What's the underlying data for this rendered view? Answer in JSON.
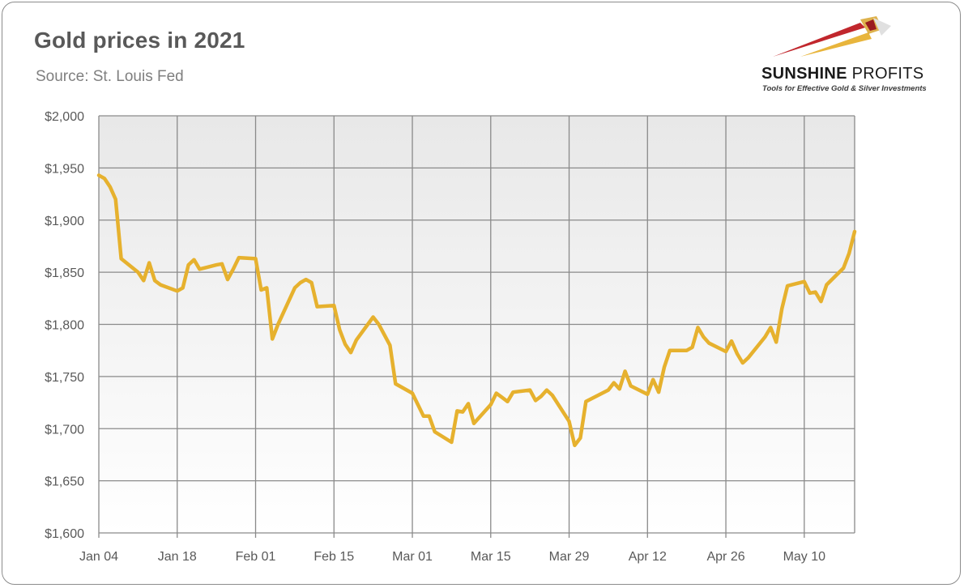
{
  "header": {
    "title": "Gold prices in 2021",
    "subtitle": "Source: St. Louis Fed"
  },
  "logo": {
    "name_part1": "SUNSHINE",
    "name_part2": "PROFITS",
    "tagline": "Tools for Effective Gold & Silver Investments",
    "colors": [
      "#c1272d",
      "#e8b53c",
      "#d9d9d9"
    ]
  },
  "colors": {
    "line": "#e6b12e",
    "grid": "#8a8a8a",
    "plot_gradient_top": "#e8e8e8",
    "plot_gradient_bottom": "#ffffff"
  },
  "chart_data": {
    "type": "line",
    "title": "Gold prices in 2021",
    "subtitle": "Source: St. Louis Fed",
    "xlabel": "",
    "ylabel": "",
    "ylim": [
      1600,
      2000
    ],
    "y_ticks": [
      1600,
      1650,
      1700,
      1750,
      1800,
      1850,
      1900,
      1950,
      2000
    ],
    "y_tick_labels": [
      "$1,600",
      "$1,650",
      "$1,700",
      "$1,750",
      "$1,800",
      "$1,850",
      "$1,900",
      "$1,950",
      "$2,000"
    ],
    "x_tick_labels": [
      "Jan 04",
      "Jan 18",
      "Feb 01",
      "Feb 15",
      "Mar 01",
      "Mar 15",
      "Mar 29",
      "Apr 12",
      "Apr 26",
      "May 10"
    ],
    "x_tick_dates": [
      "2021-01-04",
      "2021-01-18",
      "2021-02-01",
      "2021-02-15",
      "2021-03-01",
      "2021-03-15",
      "2021-03-29",
      "2021-04-12",
      "2021-04-26",
      "2021-05-10"
    ],
    "xlim": [
      "2021-01-04",
      "2021-05-19"
    ],
    "grid": true,
    "legend": "none",
    "series": [
      {
        "points": [
          [
            "2021-01-04",
            1943
          ],
          [
            "2021-01-05",
            1940
          ],
          [
            "2021-01-06",
            1932
          ],
          [
            "2021-01-07",
            1920
          ],
          [
            "2021-01-08",
            1863
          ],
          [
            "2021-01-11",
            1850
          ],
          [
            "2021-01-12",
            1842
          ],
          [
            "2021-01-13",
            1859
          ],
          [
            "2021-01-14",
            1842
          ],
          [
            "2021-01-15",
            1838
          ],
          [
            "2021-01-18",
            1832
          ],
          [
            "2021-01-19",
            1835
          ],
          [
            "2021-01-20",
            1857
          ],
          [
            "2021-01-21",
            1862
          ],
          [
            "2021-01-22",
            1853
          ],
          [
            "2021-01-25",
            1857
          ],
          [
            "2021-01-26",
            1858
          ],
          [
            "2021-01-27",
            1843
          ],
          [
            "2021-01-28",
            1853
          ],
          [
            "2021-01-29",
            1864
          ],
          [
            "2021-02-01",
            1863
          ],
          [
            "2021-02-02",
            1833
          ],
          [
            "2021-02-03",
            1835
          ],
          [
            "2021-02-04",
            1786
          ],
          [
            "2021-02-05",
            1800
          ],
          [
            "2021-02-08",
            1835
          ],
          [
            "2021-02-09",
            1840
          ],
          [
            "2021-02-10",
            1843
          ],
          [
            "2021-02-11",
            1840
          ],
          [
            "2021-02-12",
            1817
          ],
          [
            "2021-02-15",
            1818
          ],
          [
            "2021-02-16",
            1795
          ],
          [
            "2021-02-17",
            1781
          ],
          [
            "2021-02-18",
            1773
          ],
          [
            "2021-02-19",
            1785
          ],
          [
            "2021-02-22",
            1807
          ],
          [
            "2021-02-23",
            1800
          ],
          [
            "2021-02-24",
            1790
          ],
          [
            "2021-02-25",
            1780
          ],
          [
            "2021-02-26",
            1743
          ],
          [
            "2021-03-01",
            1734
          ],
          [
            "2021-03-02",
            1723
          ],
          [
            "2021-03-03",
            1712
          ],
          [
            "2021-03-04",
            1712
          ],
          [
            "2021-03-05",
            1697
          ],
          [
            "2021-03-08",
            1687
          ],
          [
            "2021-03-09",
            1717
          ],
          [
            "2021-03-10",
            1716
          ],
          [
            "2021-03-11",
            1724
          ],
          [
            "2021-03-12",
            1705
          ],
          [
            "2021-03-15",
            1723
          ],
          [
            "2021-03-16",
            1734
          ],
          [
            "2021-03-17",
            1730
          ],
          [
            "2021-03-18",
            1726
          ],
          [
            "2021-03-19",
            1735
          ],
          [
            "2021-03-22",
            1737
          ],
          [
            "2021-03-23",
            1727
          ],
          [
            "2021-03-24",
            1731
          ],
          [
            "2021-03-25",
            1737
          ],
          [
            "2021-03-26",
            1732
          ],
          [
            "2021-03-29",
            1707
          ],
          [
            "2021-03-30",
            1684
          ],
          [
            "2021-03-31",
            1691
          ],
          [
            "2021-04-01",
            1726
          ],
          [
            "2021-04-05",
            1737
          ],
          [
            "2021-04-06",
            1744
          ],
          [
            "2021-04-07",
            1738
          ],
          [
            "2021-04-08",
            1755
          ],
          [
            "2021-04-09",
            1741
          ],
          [
            "2021-04-12",
            1733
          ],
          [
            "2021-04-13",
            1747
          ],
          [
            "2021-04-14",
            1735
          ],
          [
            "2021-04-15",
            1759
          ],
          [
            "2021-04-16",
            1775
          ],
          [
            "2021-04-19",
            1775
          ],
          [
            "2021-04-20",
            1778
          ],
          [
            "2021-04-21",
            1797
          ],
          [
            "2021-04-22",
            1788
          ],
          [
            "2021-04-23",
            1782
          ],
          [
            "2021-04-26",
            1774
          ],
          [
            "2021-04-27",
            1784
          ],
          [
            "2021-04-28",
            1772
          ],
          [
            "2021-04-29",
            1763
          ],
          [
            "2021-04-30",
            1768
          ],
          [
            "2021-05-03",
            1788
          ],
          [
            "2021-05-04",
            1797
          ],
          [
            "2021-05-05",
            1783
          ],
          [
            "2021-05-06",
            1815
          ],
          [
            "2021-05-07",
            1837
          ],
          [
            "2021-05-10",
            1841
          ],
          [
            "2021-05-11",
            1830
          ],
          [
            "2021-05-12",
            1831
          ],
          [
            "2021-05-13",
            1822
          ],
          [
            "2021-05-14",
            1838
          ],
          [
            "2021-05-17",
            1854
          ],
          [
            "2021-05-18",
            1868
          ],
          [
            "2021-05-19",
            1889
          ]
        ]
      }
    ]
  }
}
